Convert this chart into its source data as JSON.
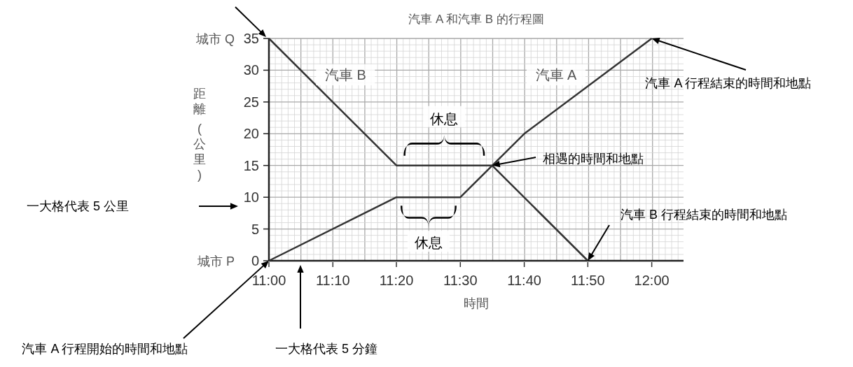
{
  "chart_data": {
    "type": "line",
    "title": "汽車 A 和汽車 B 的行程圖",
    "xlabel": "時間",
    "ylabel": "距離 (公里)",
    "xlim": [
      11,
      12.083
    ],
    "ylim": [
      0,
      35
    ],
    "xticks": [
      {
        "value": 11,
        "label": "11:00"
      },
      {
        "value": 11.167,
        "label": "11:10"
      },
      {
        "value": 11.333,
        "label": "11:20"
      },
      {
        "value": 11.5,
        "label": "11:30"
      },
      {
        "value": 11.667,
        "label": "11:40"
      },
      {
        "value": 11.833,
        "label": "11:50"
      },
      {
        "value": 12,
        "label": "12:00"
      }
    ],
    "yticks": [
      0,
      5,
      10,
      15,
      20,
      25,
      30,
      35
    ],
    "grid": true,
    "marker": "none",
    "line_style": "solid",
    "series": [
      {
        "name": "汽車 A",
        "color": "#333333",
        "x": [
          11,
          11.333,
          11.5,
          11.667,
          12
        ],
        "values": [
          0,
          10,
          10,
          20,
          35
        ]
      },
      {
        "name": "汽車 B",
        "color": "#333333",
        "x": [
          11,
          11.333,
          11.583,
          11.833
        ],
        "values": [
          35,
          15,
          15,
          0
        ]
      }
    ],
    "annotations": [
      {
        "text": "汽車 A 行程結束的時間和地點",
        "x": 12,
        "y": 35
      },
      {
        "text": "相遇的時間和地點",
        "x": 11.583,
        "y": 15
      },
      {
        "text": "汽車 B 行程結束的時間和地點",
        "x": 11.833,
        "y": 0
      },
      {
        "text": "汽車 A 行程開始的時間和地點",
        "x": 11,
        "y": 0
      },
      "一大格代表 5 分鐘",
      "一大格代表 5 公里",
      {
        "text": "休息",
        "x": 11.458,
        "y": 15
      },
      {
        "text": "休息",
        "x": 11.417,
        "y": 10
      },
      "城市 Q",
      "城市 P"
    ]
  }
}
